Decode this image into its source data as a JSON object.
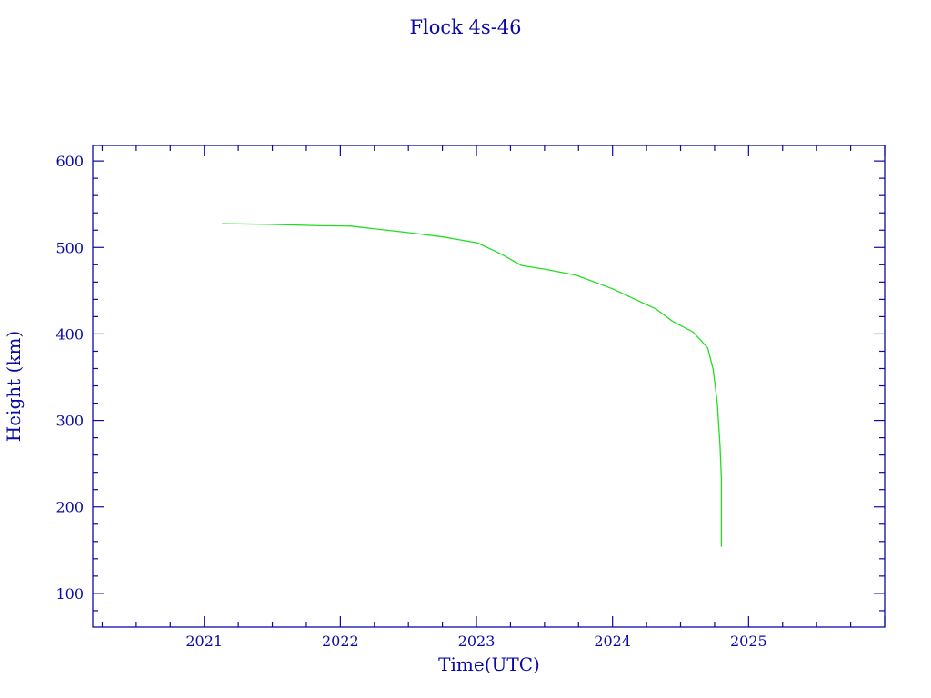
{
  "chart_data": {
    "type": "line",
    "title": "Flock 4s-46",
    "xlabel": "Time(UTC)",
    "ylabel": "Height (km)",
    "xlim": [
      2020.18,
      2026.0
    ],
    "ylim": [
      61,
      618
    ],
    "x_ticks": [
      2021,
      2022,
      2023,
      2024,
      2025
    ],
    "x_tick_labels": [
      "2021",
      "2022",
      "2023",
      "2024",
      "2025"
    ],
    "x_minor_step": 0.25,
    "y_ticks": [
      100,
      200,
      300,
      400,
      500,
      600
    ],
    "y_tick_labels": [
      "100",
      "200",
      "300",
      "400",
      "500",
      "600"
    ],
    "y_minor_step": 20,
    "grid": false,
    "colors": {
      "axis": "#0a0aa8",
      "line": "#22dd22"
    },
    "series": [
      {
        "x": [
          2021.13,
          2021.48,
          2021.85,
          2022.08,
          2022.27,
          2022.51,
          2022.76,
          2023.01,
          2023.18,
          2023.33,
          2023.5,
          2023.73,
          2024.0,
          2024.32,
          2024.44,
          2024.59,
          2024.7,
          2024.74,
          2024.77,
          2024.79,
          2024.8,
          2024.8
        ],
        "y": [
          527.5,
          526.8,
          525.1,
          524.7,
          521.2,
          517.0,
          512.1,
          505.1,
          492.5,
          479.2,
          475.0,
          468.0,
          452.2,
          428.8,
          414.8,
          402.5,
          383.9,
          358.7,
          320.3,
          271.2,
          232.7,
          153.9
        ]
      }
    ]
  }
}
